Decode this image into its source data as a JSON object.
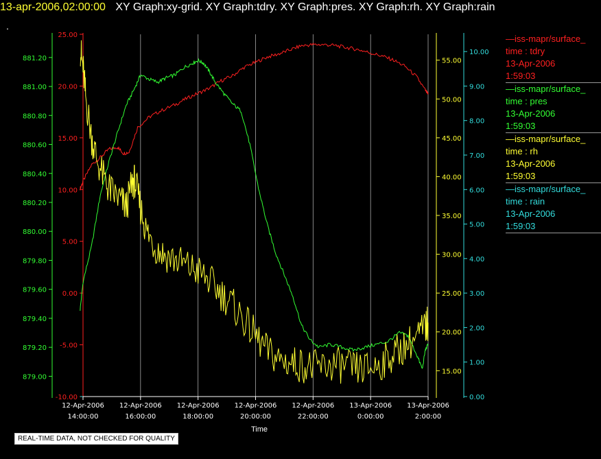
{
  "header": {
    "timestamp": "13-apr-2006,02:00:00",
    "graphs": "XY Graph:xy-grid.  XY Graph:tdry.  XY Graph:pres.  XY Graph:rh.  XY Graph:rain",
    "dot": "."
  },
  "footer": {
    "quality_note": "REAL-TIME DATA, NOT CHECKED FOR QUALITY"
  },
  "legend": [
    {
      "source": "iss-mapr/surface_",
      "var": "time : tdry",
      "date": "13-Apr-2006",
      "time": "1:59:03",
      "color": "#ff2020"
    },
    {
      "source": "iss-mapr/surface_",
      "var": "time : pres",
      "date": "13-Apr-2006",
      "time": "1:59:03",
      "color": "#33ff33"
    },
    {
      "source": "iss-mapr/surface_",
      "var": "time : rh",
      "date": "13-Apr-2006",
      "time": "1:59:03",
      "color": "#ffff33"
    },
    {
      "source": "iss-mapr/surface_",
      "var": "time : rain",
      "date": "13-Apr-2006",
      "time": "1:59:03",
      "color": "#33dddd"
    }
  ],
  "chart_data": {
    "type": "line",
    "xlabel": "Time",
    "x_ticks": [
      {
        "hours": 14,
        "date": "12-Apr-2006",
        "time": "14:00:00"
      },
      {
        "hours": 16,
        "date": "12-Apr-2006",
        "time": "16:00:00"
      },
      {
        "hours": 18,
        "date": "12-Apr-2006",
        "time": "18:00:00"
      },
      {
        "hours": 20,
        "date": "12-Apr-2006",
        "time": "20:00:00"
      },
      {
        "hours": 22,
        "date": "12-Apr-2006",
        "time": "22:00:00"
      },
      {
        "hours": 24,
        "date": "13-Apr-2006",
        "time": "0:00:00"
      },
      {
        "hours": 26,
        "date": "13-Apr-2006",
        "time": "2:00:00"
      }
    ],
    "xlim_hours": [
      14,
      26
    ],
    "vertical_grid": true,
    "axes": {
      "tdry": {
        "color": "#ff2020",
        "ylim": [
          -10,
          25
        ],
        "ticks": [
          "25.00",
          "20.00",
          "15.00",
          "10.00",
          "5.00",
          "0.00",
          "-5.00",
          "-10.00"
        ]
      },
      "pres": {
        "color": "#33ff33",
        "ylim": [
          878.86,
          881.36
        ],
        "ticks": [
          "881.20",
          "881.00",
          "880.80",
          "880.60",
          "880.40",
          "880.20",
          "880.00",
          "879.80",
          "879.60",
          "879.40",
          "879.20",
          "879.00"
        ]
      },
      "rh": {
        "color": "#ffff33",
        "ylim": [
          11.67,
          58.33
        ],
        "ticks": [
          "55.00",
          "50.00",
          "45.00",
          "40.00",
          "35.00",
          "30.00",
          "25.00",
          "20.00",
          "15.00"
        ]
      },
      "rain": {
        "color": "#33dddd",
        "ylim": [
          0,
          10.5
        ],
        "ticks": [
          "10.00",
          "9.00",
          "8.00",
          "7.00",
          "6.00",
          "5.00",
          "4.00",
          "3.00",
          "2.00",
          "1.00",
          "0.00"
        ]
      }
    },
    "series": [
      {
        "name": "tdry",
        "color": "#ff2020",
        "points": [
          [
            13.9,
            10.1
          ],
          [
            14.0,
            10.8
          ],
          [
            14.3,
            12.4
          ],
          [
            14.6,
            13.1
          ],
          [
            14.9,
            13.9
          ],
          [
            15.2,
            14.1
          ],
          [
            15.4,
            13.5
          ],
          [
            15.6,
            13.6
          ],
          [
            15.9,
            16.0
          ],
          [
            16.3,
            17.0
          ],
          [
            16.7,
            17.6
          ],
          [
            17.2,
            18.2
          ],
          [
            17.6,
            18.8
          ],
          [
            18.0,
            19.3
          ],
          [
            18.4,
            19.8
          ],
          [
            18.8,
            20.5
          ],
          [
            19.2,
            21.0
          ],
          [
            19.6,
            21.8
          ],
          [
            20.0,
            22.3
          ],
          [
            20.4,
            22.8
          ],
          [
            20.8,
            23.1
          ],
          [
            21.2,
            23.5
          ],
          [
            21.6,
            23.9
          ],
          [
            22.0,
            24.0
          ],
          [
            22.4,
            24.0
          ],
          [
            22.8,
            23.9
          ],
          [
            23.2,
            23.7
          ],
          [
            23.6,
            23.5
          ],
          [
            24.0,
            23.2
          ],
          [
            24.4,
            22.9
          ],
          [
            24.8,
            22.5
          ],
          [
            25.2,
            21.9
          ],
          [
            25.6,
            20.9
          ],
          [
            25.9,
            19.6
          ],
          [
            26.0,
            19.2
          ]
        ]
      },
      {
        "name": "pres",
        "color": "#33ff33",
        "points": [
          [
            13.9,
            879.46
          ],
          [
            14.0,
            879.65
          ],
          [
            14.3,
            879.9
          ],
          [
            14.6,
            880.25
          ],
          [
            14.9,
            880.48
          ],
          [
            15.2,
            880.68
          ],
          [
            15.5,
            880.87
          ],
          [
            15.8,
            880.99
          ],
          [
            16.0,
            881.08
          ],
          [
            16.3,
            881.05
          ],
          [
            16.6,
            881.03
          ],
          [
            16.9,
            881.06
          ],
          [
            17.2,
            881.08
          ],
          [
            17.5,
            881.13
          ],
          [
            17.8,
            881.16
          ],
          [
            18.0,
            881.18
          ],
          [
            18.2,
            881.16
          ],
          [
            18.4,
            881.1
          ],
          [
            18.6,
            881.03
          ],
          [
            18.9,
            880.95
          ],
          [
            19.2,
            880.88
          ],
          [
            19.5,
            880.83
          ],
          [
            19.8,
            880.6
          ],
          [
            20.1,
            880.3
          ],
          [
            20.4,
            880.05
          ],
          [
            20.7,
            879.85
          ],
          [
            21.0,
            879.7
          ],
          [
            21.3,
            879.55
          ],
          [
            21.6,
            879.35
          ],
          [
            21.9,
            879.25
          ],
          [
            22.2,
            879.2
          ],
          [
            22.6,
            879.22
          ],
          [
            23.0,
            879.2
          ],
          [
            23.4,
            879.18
          ],
          [
            23.8,
            879.2
          ],
          [
            24.2,
            879.22
          ],
          [
            24.6,
            879.24
          ],
          [
            25.0,
            879.3
          ],
          [
            25.3,
            879.28
          ],
          [
            25.6,
            879.15
          ],
          [
            25.8,
            879.05
          ],
          [
            25.9,
            879.18
          ],
          [
            26.0,
            879.22
          ]
        ]
      },
      {
        "name": "rh",
        "color": "#ffff33",
        "points": [
          [
            13.9,
            56.5
          ],
          [
            14.0,
            54.0
          ],
          [
            14.1,
            50.0
          ],
          [
            14.3,
            45.0
          ],
          [
            14.5,
            42.0
          ],
          [
            14.8,
            39.0
          ],
          [
            15.0,
            38.0
          ],
          [
            15.3,
            37.0
          ],
          [
            15.5,
            36.0
          ],
          [
            15.7,
            39.0
          ],
          [
            15.8,
            39.5
          ],
          [
            16.0,
            36.0
          ],
          [
            16.2,
            33.0
          ],
          [
            16.5,
            31.0
          ],
          [
            16.8,
            30.0
          ],
          [
            17.2,
            29.3
          ],
          [
            17.6,
            28.5
          ],
          [
            18.0,
            27.8
          ],
          [
            18.4,
            26.5
          ],
          [
            18.8,
            25.0
          ],
          [
            19.2,
            23.5
          ],
          [
            19.6,
            21.5
          ],
          [
            20.0,
            19.5
          ],
          [
            20.4,
            17.5
          ],
          [
            20.8,
            16.5
          ],
          [
            21.2,
            16.0
          ],
          [
            21.6,
            15.8
          ],
          [
            22.0,
            15.4
          ],
          [
            22.4,
            15.5
          ],
          [
            22.8,
            15.8
          ],
          [
            23.2,
            15.4
          ],
          [
            23.6,
            15.2
          ],
          [
            24.0,
            15.3
          ],
          [
            24.4,
            16.0
          ],
          [
            24.8,
            17.2
          ],
          [
            25.2,
            18.2
          ],
          [
            25.6,
            19.3
          ],
          [
            25.9,
            20.5
          ],
          [
            26.0,
            21.2
          ]
        ]
      },
      {
        "name": "rain",
        "color": "#33dddd",
        "points": [
          [
            13.9,
            0.0
          ],
          [
            26.0,
            0.0
          ]
        ]
      }
    ]
  }
}
